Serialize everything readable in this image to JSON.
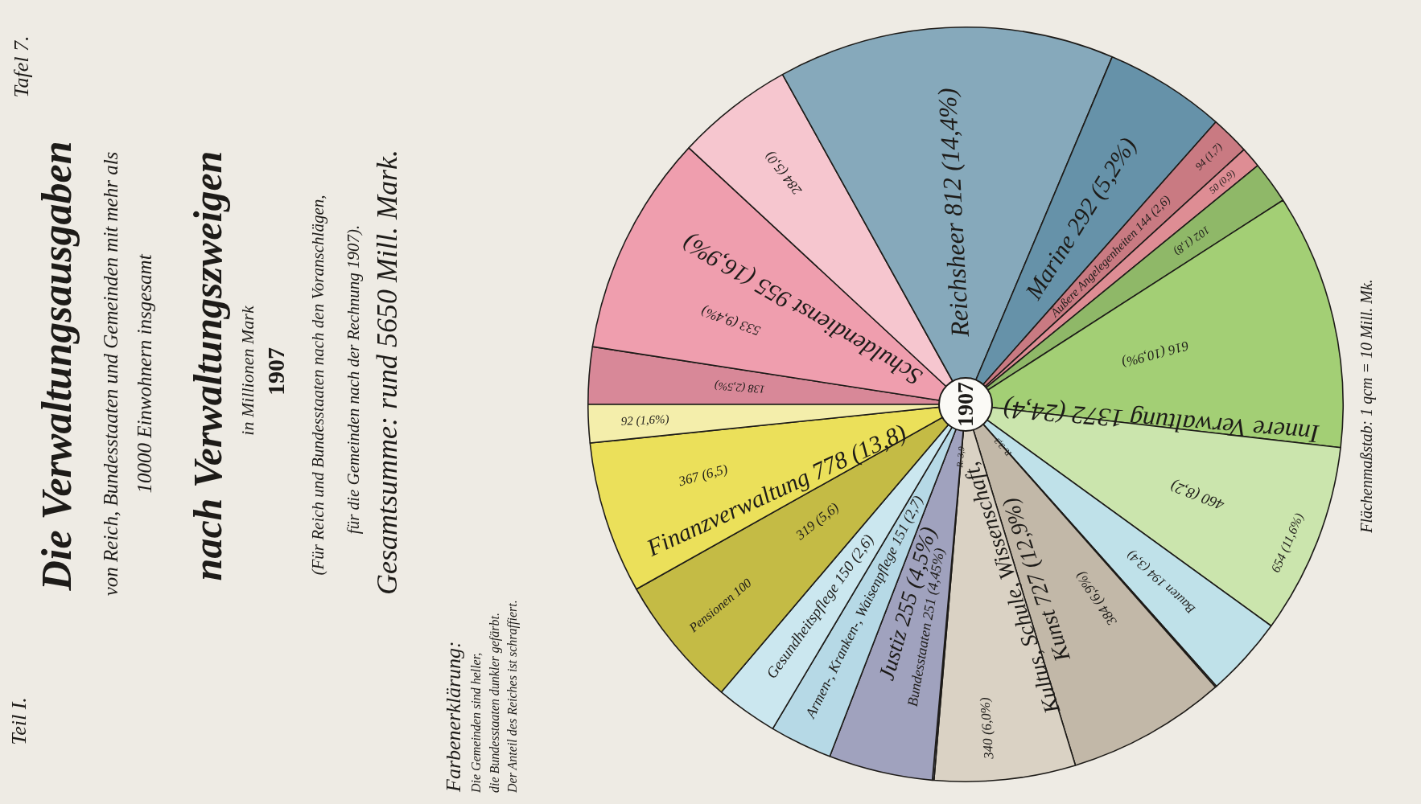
{
  "chart_data": {
    "type": "pie",
    "title": "Die Verwaltungsausgaben",
    "subtitle": "von Reich, Bundesstaaten und Gemeinden mit mehr als 10000 Einwohnern insgesamt",
    "categories": [
      null,
      null,
      null,
      "Reichsheer",
      "Marine",
      null,
      null,
      null,
      null,
      null,
      "Bauten",
      null,
      null,
      null,
      null,
      "Bundesstaaten",
      "Armen-, Kranken-, Waisenpflege",
      "Gesundheitspflege",
      null,
      null,
      null
    ],
    "values": [
      138,
      533,
      284,
      812,
      292,
      94,
      50,
      102,
      616,
      460,
      194,
      3.3,
      384,
      340,
      3.9,
      251,
      151,
      150,
      319,
      367,
      92
    ],
    "value_labels": [
      "138 (2,5%)",
      "533 (9,4%)",
      "284 (5,0)",
      "812 (14,4%)",
      "292 (5,2%)",
      "94 (1,7)",
      "50 (0,9)",
      "102 (1,8)",
      "616 (10,9%)",
      "460 (8,2)",
      "194 (3,4)",
      "R. 3,3",
      "384 (6,9%)",
      "340 (6,0%)",
      "R. 3,9",
      "251 (4,45%)",
      "151 (2,7)",
      "150 (2,6)",
      "319 (5,6)",
      "367 (6,5)",
      "92 (1,6%)"
    ],
    "colors": [
      "#d88898",
      "#ef9eae",
      "#f6c6cf",
      "#86a9bb",
      "#6692a9",
      "#c97a82",
      "#de8d94",
      "#8fb868",
      "#a3cf75",
      "#cbe5ad",
      "#bfe1e9",
      "#a89d8d",
      "#c2b8a8",
      "#dad2c4",
      "#84869f",
      "#a0a2be",
      "#b6d9e6",
      "#cbe7ef",
      "#c4bb45",
      "#ebe05a",
      "#f4eeab"
    ],
    "annotations": [
      "Teil I.",
      "Tafel 7.",
      "nach Verwaltungszweigen",
      "in Millionen Mark",
      "1907",
      "(Für Reich und Bundesstaaten nach den Voranschlägen,",
      "für die Gemeinden nach der Rechnung 1907).",
      "Gesamtsumme: rund 5650 Mill. Mark.",
      "Farbenerklärung:",
      "Die Gemeinden sind heller,",
      "die Bundesstaaten dunkler gefärbt.",
      "Der Anteil des Reiches ist schraffiert.",
      "Flächenmaßstab: 1 qcm = 10 Mill. Mk.",
      "1907",
      "Schuldendienst 955 (16,9%)",
      "Äußere Angelegenheiten 144 (2,6)",
      "Innere Verwaltung 1372 (24,4)",
      "Kultus, Schule, Wissenschaft, Kunst 727 (12,9%)",
      "Justiz 255 (4,5%)",
      "Finanzverwaltung 778 (13,8)",
      "654 (11,6%)",
      "Pensionen 100"
    ]
  }
}
